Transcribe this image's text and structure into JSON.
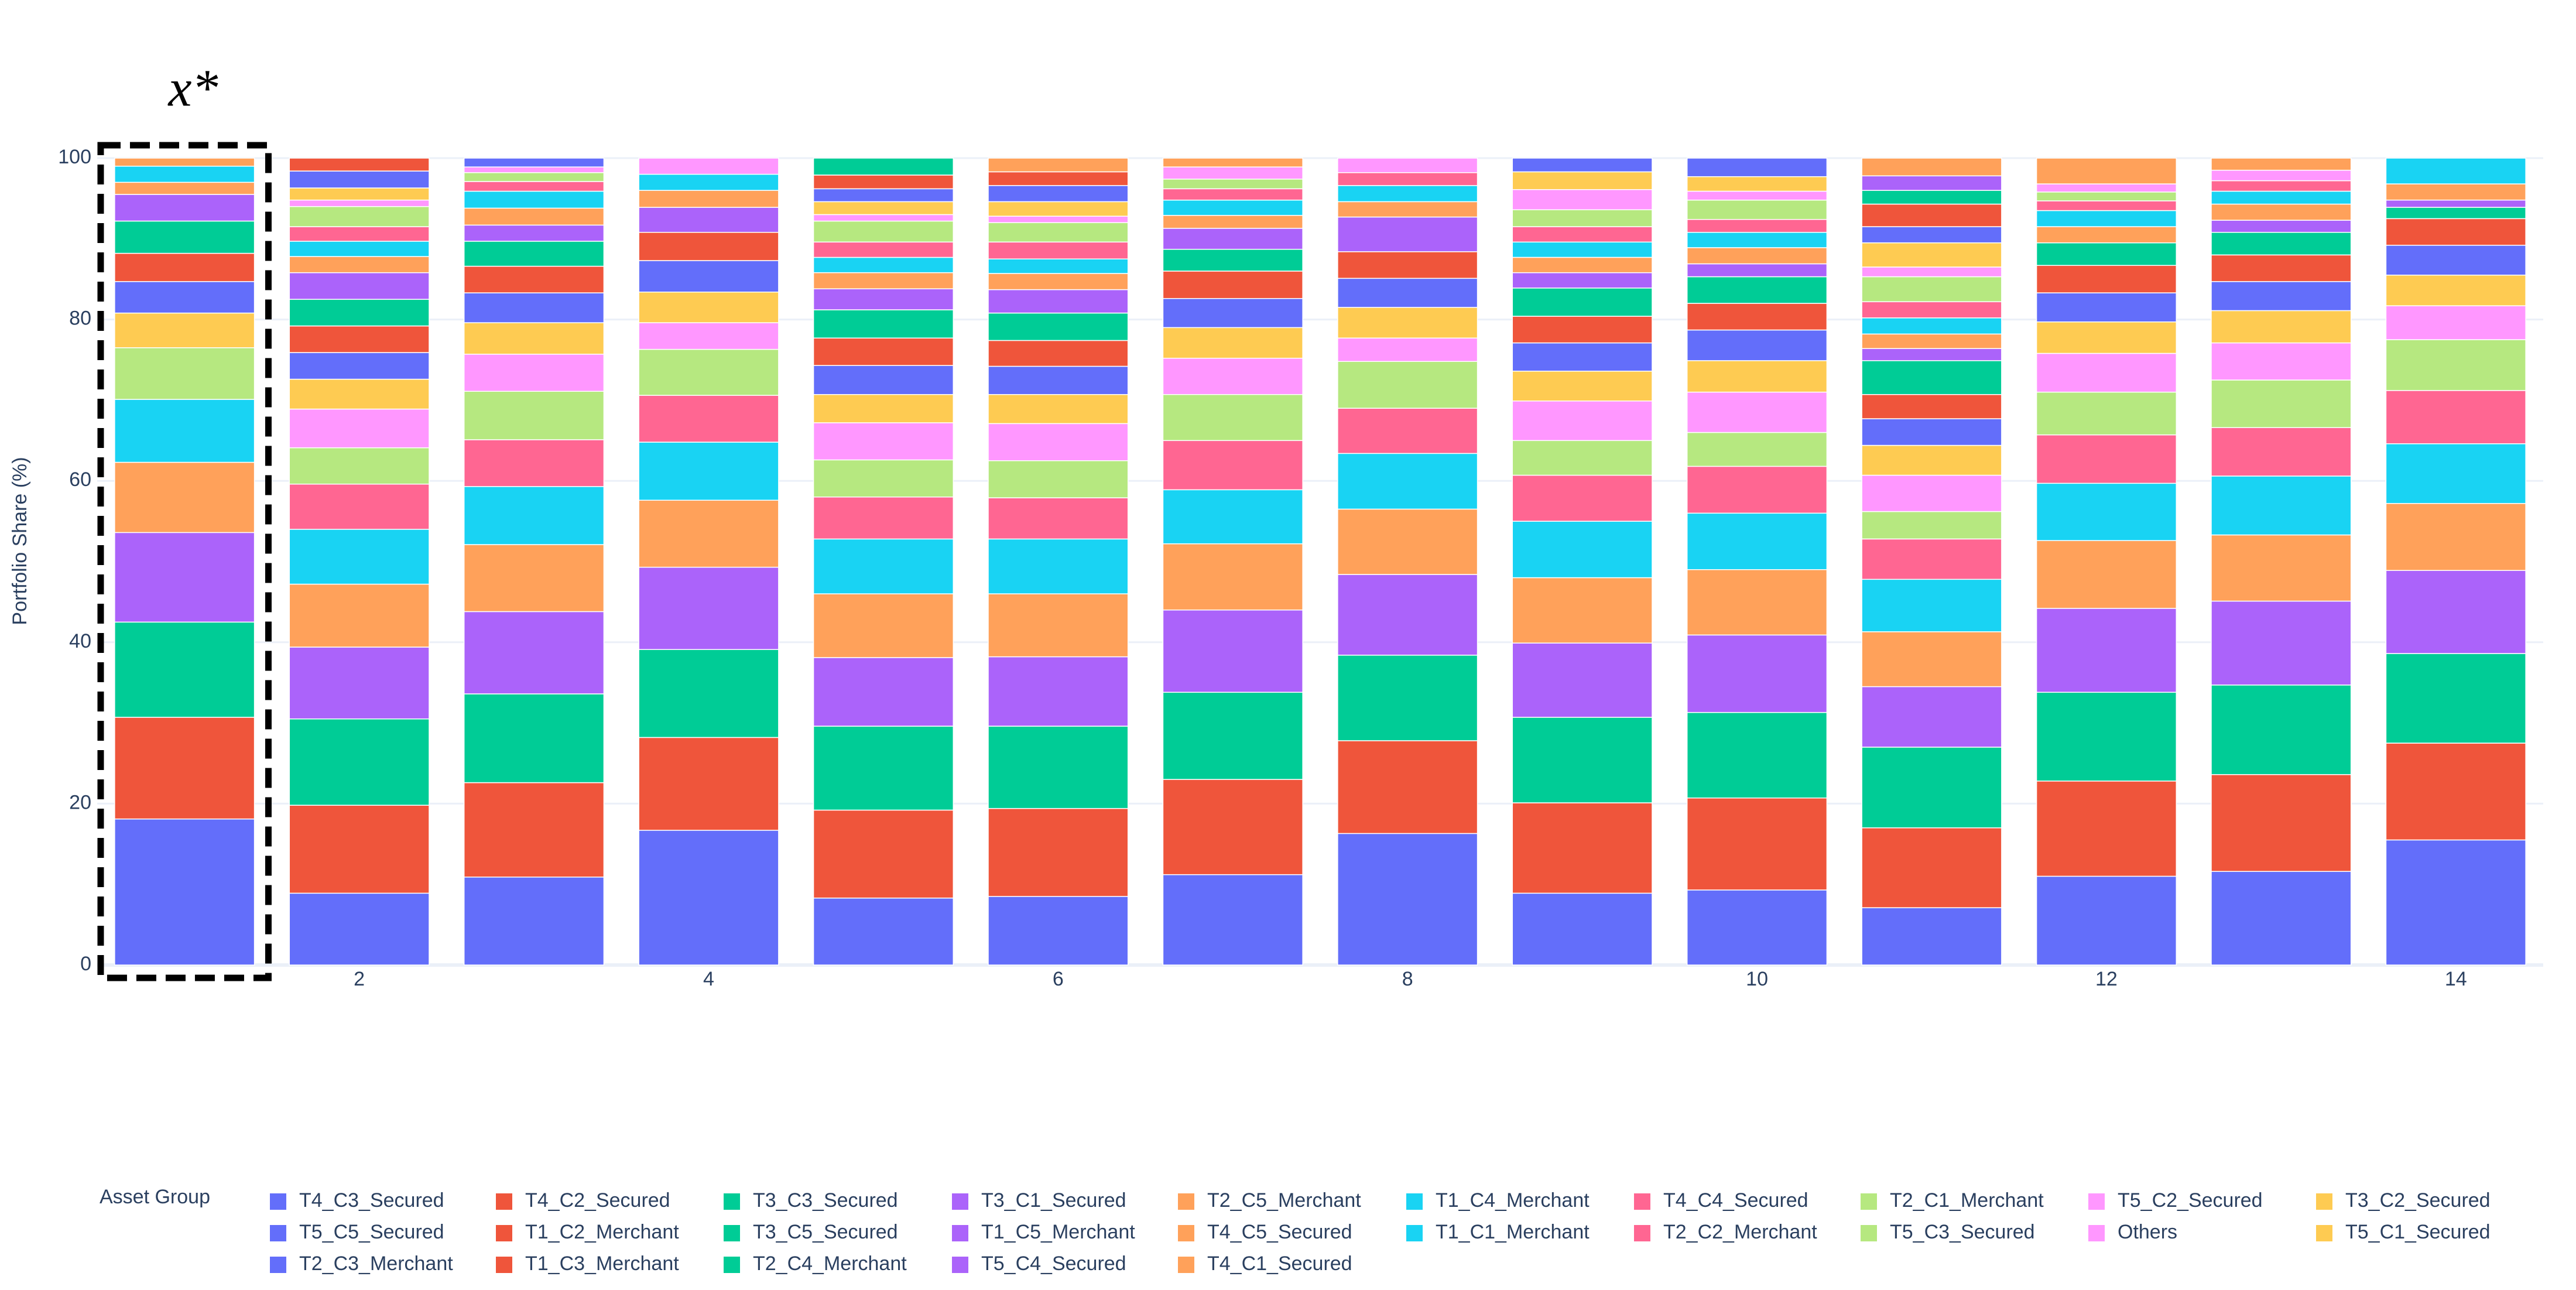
{
  "chart_data": {
    "type": "stacked_bar",
    "annotation": "x*",
    "y_label": "Portfolio Share (%)",
    "legend_title": "Asset Group",
    "x": [
      1,
      2,
      3,
      4,
      5,
      6,
      7,
      8,
      9,
      10,
      11,
      12,
      13,
      14
    ],
    "xlim": [
      0.5,
      14.5
    ],
    "xticks": [
      2,
      4,
      6,
      8,
      10,
      12,
      14
    ],
    "ylim": [
      0,
      100
    ],
    "yticks": [
      0,
      20,
      40,
      60,
      80,
      100
    ],
    "grid": true,
    "legend": "bottom",
    "series": [
      {
        "name": "T4_C3_Secured",
        "color": "#636efa",
        "values": [
          18.1,
          8.9,
          10.9,
          16.7,
          8.3,
          8.5,
          11.2,
          16.3,
          8.9,
          9.3,
          7.1,
          11.0,
          11.6,
          15.5
        ]
      },
      {
        "name": "T4_C2_Secured",
        "color": "#ef553b",
        "values": [
          12.6,
          10.9,
          11.7,
          11.5,
          10.9,
          10.9,
          11.8,
          11.5,
          11.2,
          11.4,
          9.9,
          11.8,
          12.0,
          12.0
        ]
      },
      {
        "name": "T3_C3_Secured",
        "color": "#00cc96",
        "values": [
          11.8,
          10.7,
          11.0,
          10.9,
          10.4,
          10.2,
          10.8,
          10.6,
          10.6,
          10.6,
          10.0,
          11.0,
          11.1,
          11.1
        ]
      },
      {
        "name": "T3_C1_Secured",
        "color": "#ab63fa",
        "values": [
          11.1,
          8.9,
          10.2,
          10.2,
          8.5,
          8.6,
          10.2,
          10.0,
          9.2,
          9.6,
          7.5,
          10.4,
          10.4,
          10.3
        ]
      },
      {
        "name": "T2_C5_Merchant",
        "color": "#ffa15a",
        "values": [
          8.7,
          7.8,
          8.3,
          8.3,
          7.9,
          7.8,
          8.2,
          8.1,
          8.1,
          8.1,
          6.8,
          8.4,
          8.2,
          8.3
        ]
      },
      {
        "name": "T1_C4_Merchant",
        "color": "#19d3f3",
        "values": [
          7.8,
          6.8,
          7.2,
          7.2,
          6.8,
          6.8,
          6.7,
          6.9,
          7.0,
          7.0,
          6.5,
          7.1,
          7.3,
          7.4
        ]
      },
      {
        "name": "T4_C4_Secured",
        "color": "#ff6692",
        "values": [
          0,
          5.6,
          5.8,
          5.8,
          5.2,
          5.1,
          6.1,
          5.6,
          5.7,
          5.8,
          5.0,
          6.0,
          6.0,
          6.6
        ]
      },
      {
        "name": "T2_C1_Merchant",
        "color": "#b6e880",
        "values": [
          6.4,
          4.5,
          6.0,
          5.7,
          4.6,
          4.6,
          5.7,
          5.8,
          4.3,
          4.2,
          3.4,
          5.3,
          5.9,
          6.3
        ]
      },
      {
        "name": "T5_C2_Secured",
        "color": "#ff97ff",
        "values": [
          0,
          4.8,
          4.6,
          3.3,
          4.6,
          4.6,
          4.5,
          2.9,
          4.9,
          5.0,
          4.5,
          4.8,
          4.6,
          4.2
        ]
      },
      {
        "name": "T3_C2_Secured",
        "color": "#fecb52",
        "values": [
          4.3,
          3.7,
          3.9,
          3.8,
          3.5,
          3.6,
          3.8,
          3.8,
          3.7,
          3.9,
          3.7,
          3.9,
          4.0,
          3.8
        ]
      },
      {
        "name": "T5_C5_Secured",
        "color": "#636efa",
        "values": [
          3.9,
          3.3,
          3.7,
          3.9,
          3.6,
          3.5,
          3.6,
          3.6,
          3.5,
          3.8,
          3.3,
          3.6,
          3.6,
          3.7
        ]
      },
      {
        "name": "T1_C2_Merchant",
        "color": "#ef553b",
        "values": [
          3.5,
          3.3,
          3.3,
          3.5,
          3.4,
          3.2,
          3.4,
          3.3,
          3.3,
          3.3,
          3.0,
          3.4,
          3.3,
          3.3
        ]
      },
      {
        "name": "T3_C5_Secured",
        "color": "#00cc96",
        "values": [
          4.0,
          3.3,
          3.1,
          0,
          3.5,
          3.4,
          2.7,
          0,
          3.5,
          3.3,
          4.2,
          2.8,
          2.8,
          1.4
        ]
      },
      {
        "name": "T1_C5_Merchant",
        "color": "#ab63fa",
        "values": [
          3.3,
          3.3,
          2.0,
          3.1,
          2.6,
          2.9,
          2.6,
          4.3,
          1.9,
          1.6,
          1.5,
          0,
          1.5,
          0.9
        ]
      },
      {
        "name": "T4_C5_Secured",
        "color": "#ffa15a",
        "values": [
          1.5,
          2.0,
          2.1,
          2.1,
          2.0,
          2.0,
          1.6,
          1.9,
          1.9,
          2.0,
          1.8,
          2.0,
          2.0,
          2.0
        ]
      },
      {
        "name": "T1_C1_Merchant",
        "color": "#19d3f3",
        "values": [
          2.0,
          1.9,
          2.1,
          2.0,
          1.9,
          1.8,
          1.9,
          2.0,
          1.9,
          1.9,
          2.0,
          2.0,
          1.6,
          3.2
        ]
      },
      {
        "name": "T2_C2_Merchant",
        "color": "#ff6692",
        "values": [
          0,
          1.8,
          1.2,
          0,
          1.9,
          2.1,
          1.4,
          1.6,
          1.9,
          1.6,
          2.0,
          1.2,
          1.3,
          0
        ]
      },
      {
        "name": "T5_C3_Secured",
        "color": "#b6e880",
        "values": [
          0,
          2.5,
          1.1,
          0,
          2.6,
          2.4,
          1.2,
          0,
          2.1,
          2.4,
          3.1,
          1.1,
          0,
          0
        ]
      },
      {
        "name": "Others",
        "color": "#ff97ff",
        "values": [
          0,
          0.8,
          0.7,
          2.0,
          0.8,
          0.8,
          1.5,
          1.8,
          2.5,
          1.1,
          1.2,
          1.0,
          1.3,
          0
        ]
      },
      {
        "name": "T5_C1_Secured",
        "color": "#fecb52",
        "values": [
          0,
          1.5,
          0,
          0,
          1.6,
          1.8,
          0,
          0,
          2.2,
          1.8,
          3.0,
          0,
          0,
          0
        ]
      },
      {
        "name": "T2_C3_Merchant",
        "color": "#636efa",
        "values": [
          0,
          2.1,
          1.1,
          0,
          1.6,
          2.0,
          0,
          0,
          1.7,
          2.3,
          2.0,
          0,
          0,
          0
        ]
      },
      {
        "name": "T1_C3_Merchant",
        "color": "#ef553b",
        "values": [
          0,
          1.6,
          0,
          0,
          1.7,
          1.7,
          0,
          0,
          0,
          0,
          2.8,
          0,
          0,
          0
        ]
      },
      {
        "name": "T2_C4_Merchant",
        "color": "#00cc96",
        "values": [
          0,
          0,
          0,
          0,
          2.1,
          0,
          0,
          0,
          0,
          0,
          1.7,
          0,
          0,
          0
        ]
      },
      {
        "name": "T5_C4_Secured",
        "color": "#ab63fa",
        "values": [
          0,
          0,
          0,
          0,
          0,
          0,
          0,
          0,
          0,
          0,
          1.8,
          0,
          0,
          0
        ]
      },
      {
        "name": "T4_C1_Secured",
        "color": "#ffa15a",
        "values": [
          1.0,
          0,
          0,
          0,
          0,
          1.7,
          1.1,
          0,
          0,
          0,
          2.2,
          3.2,
          1.5,
          0
        ]
      }
    ]
  }
}
